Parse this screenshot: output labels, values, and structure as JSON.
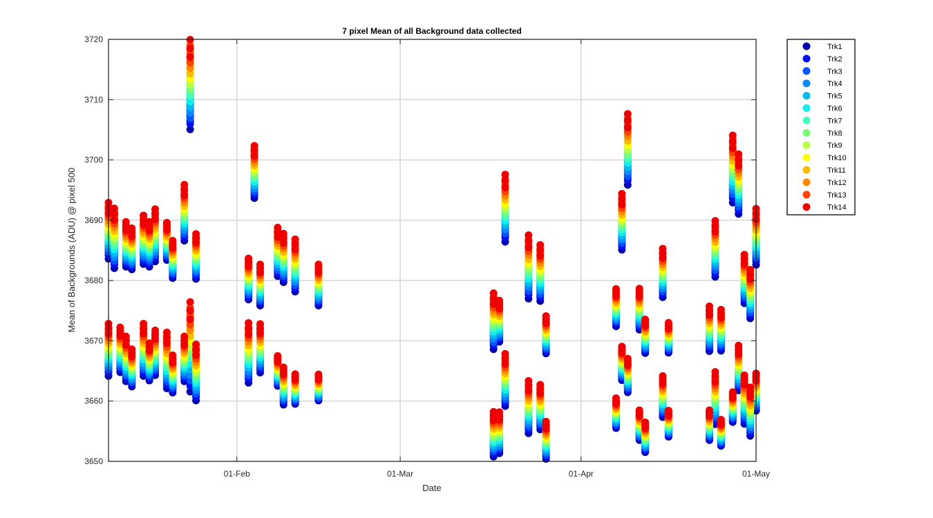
{
  "chart_data": {
    "type": "scatter",
    "title": "7 pixel Mean of all Background data collected",
    "xlabel": "Date",
    "ylabel": "Mean of Backgrounds (ADU) @ pixel 500",
    "xlim": [
      "Jan-10",
      "May-01"
    ],
    "ylim": [
      3650,
      3720
    ],
    "yticks": [
      3650,
      3660,
      3670,
      3680,
      3690,
      3700,
      3710,
      3720
    ],
    "xticks": [
      {
        "date": "Feb-01",
        "label": "01-Feb"
      },
      {
        "date": "Mar-01",
        "label": "01-Mar"
      },
      {
        "date": "Apr-01",
        "label": "01-Apr"
      },
      {
        "date": "May-01",
        "label": "01-May"
      }
    ],
    "grid": true,
    "legend_position": "outside-top-right",
    "series": [
      {
        "name": "Trk1",
        "color": "#0000aa"
      },
      {
        "name": "Trk2",
        "color": "#0011ee"
      },
      {
        "name": "Trk3",
        "color": "#0055ff"
      },
      {
        "name": "Trk4",
        "color": "#0a88ff"
      },
      {
        "name": "Trk5",
        "color": "#00bbee"
      },
      {
        "name": "Trk6",
        "color": "#10eeee"
      },
      {
        "name": "Trk7",
        "color": "#44ffbb"
      },
      {
        "name": "Trk8",
        "color": "#77ff77"
      },
      {
        "name": "Trk9",
        "color": "#bbff44"
      },
      {
        "name": "Trk10",
        "color": "#ffff00"
      },
      {
        "name": "Trk11",
        "color": "#ffbb00"
      },
      {
        "name": "Trk12",
        "color": "#ff8800"
      },
      {
        "name": "Trk13",
        "color": "#ff4400"
      },
      {
        "name": "Trk14",
        "color": "#ee0000"
      }
    ],
    "clusters": [
      {
        "date": "Jan-10",
        "top": 3692,
        "bottom": 3684.5
      },
      {
        "date": "Jan-10",
        "top": 3672,
        "bottom": 3665
      },
      {
        "date": "Jan-11",
        "top": 3691,
        "bottom": 3683
      },
      {
        "date": "Jan-12",
        "top": 3671.5,
        "bottom": 3665.5
      },
      {
        "date": "Jan-13",
        "top": 3689,
        "bottom": 3683
      },
      {
        "date": "Jan-13",
        "top": 3670,
        "bottom": 3664
      },
      {
        "date": "Jan-14",
        "top": 3688,
        "bottom": 3682.5
      },
      {
        "date": "Jan-14",
        "top": 3668,
        "bottom": 3663
      },
      {
        "date": "Jan-16",
        "top": 3690,
        "bottom": 3683.5
      },
      {
        "date": "Jan-16",
        "top": 3672,
        "bottom": 3665
      },
      {
        "date": "Jan-17",
        "top": 3689,
        "bottom": 3683
      },
      {
        "date": "Jan-17",
        "top": 3669,
        "bottom": 3664
      },
      {
        "date": "Jan-18",
        "top": 3691,
        "bottom": 3684
      },
      {
        "date": "Jan-18",
        "top": 3671,
        "bottom": 3665
      },
      {
        "date": "Jan-20",
        "top": 3689,
        "bottom": 3684
      },
      {
        "date": "Jan-20",
        "top": 3670.5,
        "bottom": 3663
      },
      {
        "date": "Jan-21",
        "top": 3686,
        "bottom": 3681
      },
      {
        "date": "Jan-21",
        "top": 3667,
        "bottom": 3662
      },
      {
        "date": "Jan-23",
        "top": 3695,
        "bottom": 3687.5
      },
      {
        "date": "Jan-23",
        "top": 3670,
        "bottom": 3664
      },
      {
        "date": "Jan-24",
        "top": 3718.5,
        "bottom": 3706.5
      },
      {
        "date": "Jan-24",
        "top": 3675,
        "bottom": 3663
      },
      {
        "date": "Jan-25",
        "top": 3687,
        "bottom": 3681
      },
      {
        "date": "Jan-25",
        "top": 3668.5,
        "bottom": 3661
      },
      {
        "date": "Feb-03",
        "top": 3683,
        "bottom": 3677.5
      },
      {
        "date": "Feb-03",
        "top": 3672,
        "bottom": 3664
      },
      {
        "date": "Feb-04",
        "top": 3701.5,
        "bottom": 3694.5
      },
      {
        "date": "Feb-05",
        "top": 3682,
        "bottom": 3676.5
      },
      {
        "date": "Feb-05",
        "top": 3672,
        "bottom": 3665.5
      },
      {
        "date": "Feb-08",
        "top": 3688,
        "bottom": 3681.5
      },
      {
        "date": "Feb-08",
        "top": 3667,
        "bottom": 3663
      },
      {
        "date": "Feb-09",
        "top": 3687,
        "bottom": 3680.5
      },
      {
        "date": "Feb-09",
        "top": 3665,
        "bottom": 3660
      },
      {
        "date": "Feb-11",
        "top": 3686,
        "bottom": 3679
      },
      {
        "date": "Feb-11",
        "top": 3664,
        "bottom": 3660
      },
      {
        "date": "Feb-15",
        "top": 3682,
        "bottom": 3676.5
      },
      {
        "date": "Feb-15",
        "top": 3664,
        "bottom": 3660.5
      },
      {
        "date": "Mar-17",
        "top": 3677,
        "bottom": 3669.5
      },
      {
        "date": "Mar-17",
        "top": 3657.5,
        "bottom": 3651.5
      },
      {
        "date": "Mar-18",
        "top": 3676,
        "bottom": 3670.5
      },
      {
        "date": "Mar-18",
        "top": 3657.5,
        "bottom": 3652
      },
      {
        "date": "Mar-19",
        "top": 3696.5,
        "bottom": 3687.5
      },
      {
        "date": "Mar-19",
        "top": 3667,
        "bottom": 3660
      },
      {
        "date": "Mar-23",
        "top": 3686.5,
        "bottom": 3678
      },
      {
        "date": "Mar-23",
        "top": 3662.5,
        "bottom": 3655.5
      },
      {
        "date": "Mar-25",
        "top": 3685,
        "bottom": 3677.5
      },
      {
        "date": "Mar-25",
        "top": 3662,
        "bottom": 3656
      },
      {
        "date": "Mar-26",
        "top": 3673.5,
        "bottom": 3668.5
      },
      {
        "date": "Mar-26",
        "top": 3656,
        "bottom": 3651
      },
      {
        "date": "Apr-07",
        "top": 3678,
        "bottom": 3673
      },
      {
        "date": "Apr-07",
        "top": 3660,
        "bottom": 3656
      },
      {
        "date": "Apr-08",
        "top": 3693.5,
        "bottom": 3686
      },
      {
        "date": "Apr-08",
        "top": 3668.5,
        "bottom": 3664
      },
      {
        "date": "Apr-09",
        "top": 3706.5,
        "bottom": 3697
      },
      {
        "date": "Apr-09",
        "top": 3666.5,
        "bottom": 3662
      },
      {
        "date": "Apr-11",
        "top": 3678,
        "bottom": 3672.5
      },
      {
        "date": "Apr-11",
        "top": 3658,
        "bottom": 3654
      },
      {
        "date": "Apr-12",
        "top": 3673,
        "bottom": 3668.5
      },
      {
        "date": "Apr-12",
        "top": 3656,
        "bottom": 3652
      },
      {
        "date": "Apr-15",
        "top": 3684.5,
        "bottom": 3678
      },
      {
        "date": "Apr-15",
        "top": 3663.5,
        "bottom": 3658
      },
      {
        "date": "Apr-16",
        "top": 3672.5,
        "bottom": 3668.5
      },
      {
        "date": "Apr-16",
        "top": 3658,
        "bottom": 3654.5
      },
      {
        "date": "Apr-23",
        "top": 3675,
        "bottom": 3669
      },
      {
        "date": "Apr-23",
        "top": 3658,
        "bottom": 3654
      },
      {
        "date": "Apr-24",
        "top": 3689,
        "bottom": 3681.5
      },
      {
        "date": "Apr-24",
        "top": 3664,
        "bottom": 3657
      },
      {
        "date": "Apr-25",
        "top": 3674.5,
        "bottom": 3669
      },
      {
        "date": "Apr-25",
        "top": 3656.5,
        "bottom": 3653
      },
      {
        "date": "Apr-27",
        "top": 3703,
        "bottom": 3694
      },
      {
        "date": "Apr-27",
        "top": 3661,
        "bottom": 3657
      },
      {
        "date": "Apr-28",
        "top": 3700,
        "bottom": 3692
      },
      {
        "date": "Apr-28",
        "top": 3668.5,
        "bottom": 3662.5
      },
      {
        "date": "Apr-29",
        "top": 3683.5,
        "bottom": 3677
      },
      {
        "date": "Apr-29",
        "top": 3663.5,
        "bottom": 3657
      },
      {
        "date": "Apr-30",
        "top": 3681,
        "bottom": 3674.5
      },
      {
        "date": "Apr-30",
        "top": 3661.5,
        "bottom": 3655
      },
      {
        "date": "May-01",
        "top": 3691,
        "bottom": 3683.5
      },
      {
        "date": "May-01",
        "top": 3664,
        "bottom": 3659
      }
    ]
  }
}
